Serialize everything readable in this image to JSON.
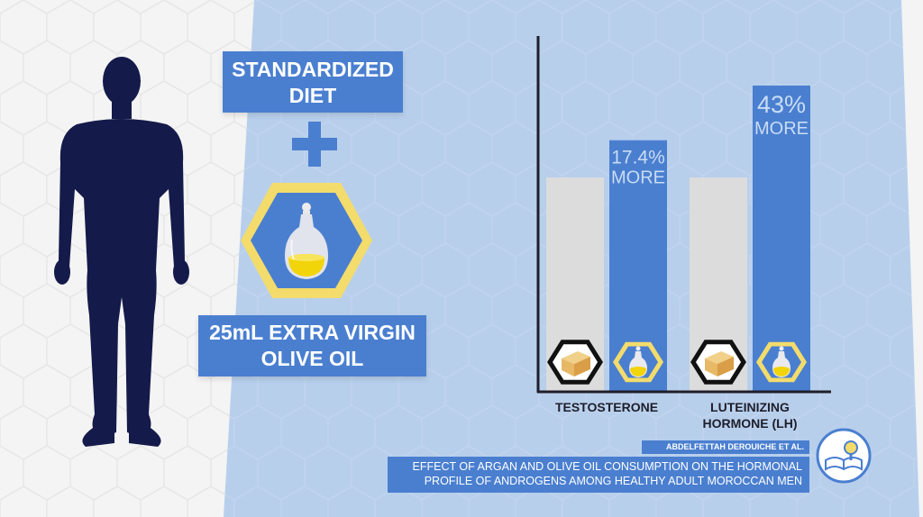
{
  "colors": {
    "accent_blue": "#4a7fd0",
    "panel_light_blue": "#b8cfec",
    "silhouette_navy": "#141a4a",
    "hexagon_yellow": "#f3dc6c",
    "baseline_bar_gray": "#dcdcdc"
  },
  "diet": {
    "line1": "STANDARDIZED",
    "line2": "DIET"
  },
  "oil": {
    "line1": "25mL  EXTRA VIRGIN",
    "line2": "OLIVE OIL"
  },
  "icons": {
    "figure": "man-silhouette-icon",
    "oil": "olive-oil-bottle-icon",
    "plus": "plus-icon",
    "food": "food-box-icon",
    "citation": "book-magnifier-icon"
  },
  "chart_data": {
    "type": "bar",
    "categories": [
      "TESTOSTERONE",
      "LUTEINIZING\nHORMONE (LH)"
    ],
    "category_labels": [
      [
        "TESTOSTERONE"
      ],
      [
        "LUTEINIZING",
        "HORMONE (LH)"
      ]
    ],
    "series": [
      {
        "values": [
          100,
          100
        ],
        "color": "#dcdcdc"
      },
      {
        "values": [
          117.4,
          143
        ],
        "color": "#4a7fd0"
      }
    ],
    "data_labels": [
      [
        "17.4%",
        "MORE"
      ],
      [
        "43%",
        "MORE"
      ]
    ],
    "bar_icons": [
      "food-box-icon",
      "olive-oil-bottle-icon"
    ],
    "ylim": [
      0,
      162
    ],
    "xlabel": "",
    "ylabel": "",
    "grid": false
  },
  "citation": {
    "author": "ABDELFETTAH DEROUICHE  ET AL.",
    "title_line1": "EFFECT OF ARGAN AND OLIVE OIL CONSUMPTION ON THE HORMONAL",
    "title_line2": "PROFILE OF ANDROGENS AMONG HEALTHY ADULT MOROCCAN MEN"
  }
}
